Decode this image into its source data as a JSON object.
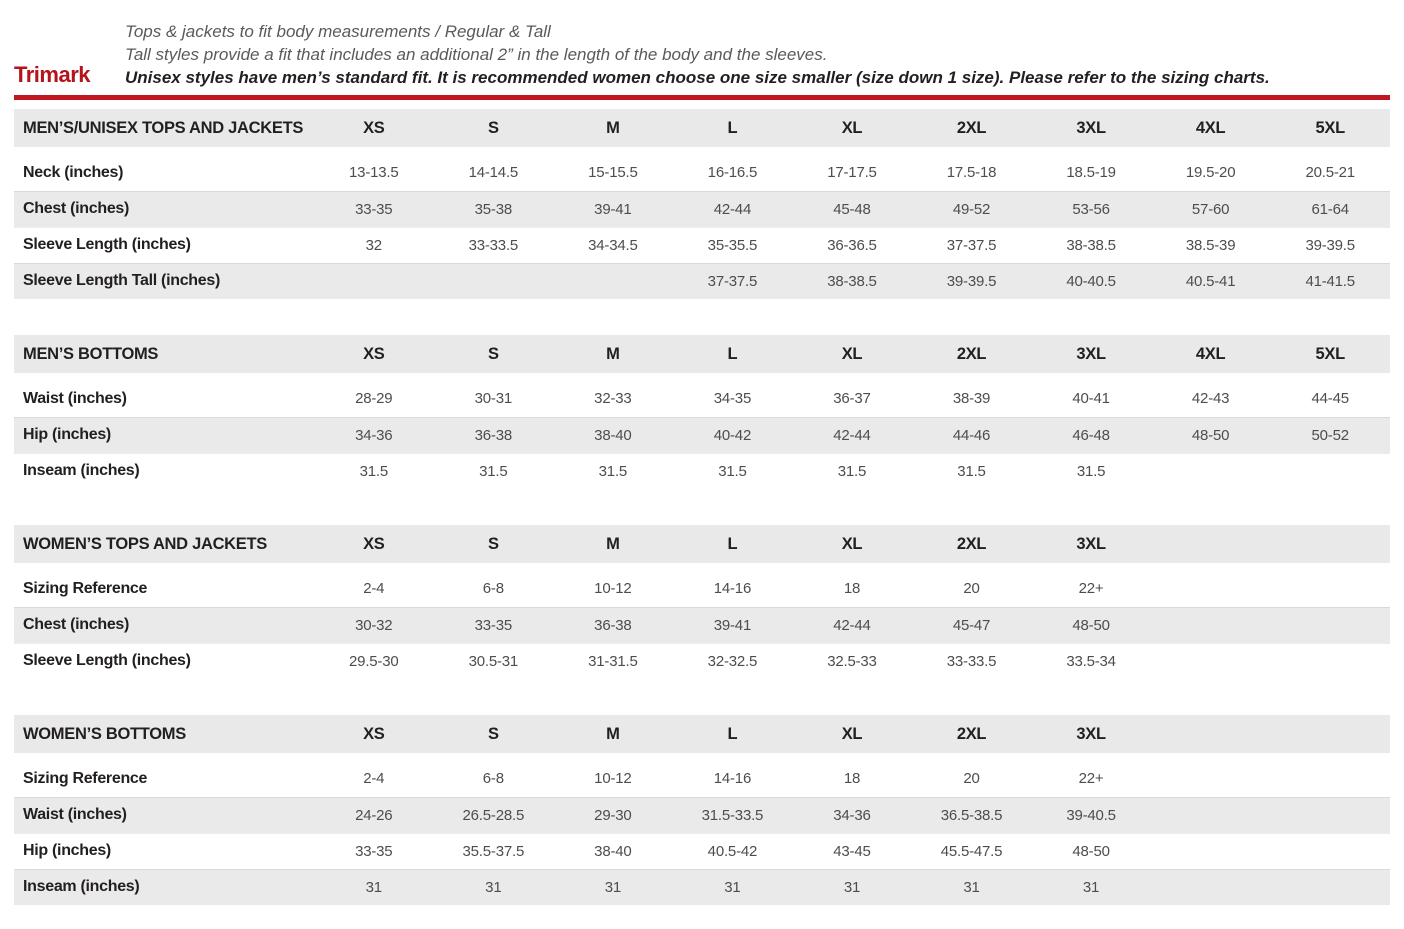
{
  "header": {
    "brand": "Trimark",
    "line1": "Tops & jackets to fit body measurements / Regular & Tall",
    "line2": "Tall styles provide a fit that includes an additional 2” in the length of the body and the sleeves.",
    "line3": "Unisex styles have men’s standard fit. It is recommended women choose one size smaller (size down 1 size).  Please refer to the sizing charts."
  },
  "colors": {
    "brand_red": "#B5121B",
    "rule_red": "#C01622",
    "row_gray": "#EAEAEA",
    "text_dark": "#231F20",
    "text_gray": "#595A5C"
  },
  "tables": [
    {
      "title": "MEN’S/UNISEX TOPS AND JACKETS",
      "sizes": [
        "XS",
        "S",
        "M",
        "L",
        "XL",
        "2XL",
        "3XL",
        "4XL",
        "5XL"
      ],
      "rows": [
        {
          "label": "Neck (inches)",
          "values": [
            "13-13.5",
            "14-14.5",
            "15-15.5",
            "16-16.5",
            "17-17.5",
            "17.5-18",
            "18.5-19",
            "19.5-20",
            "20.5-21"
          ]
        },
        {
          "label": "Chest (inches)",
          "values": [
            "33-35",
            "35-38",
            "39-41",
            "42-44",
            "45-48",
            "49-52",
            "53-56",
            "57-60",
            "61-64"
          ]
        },
        {
          "label": "Sleeve Length (inches)",
          "values": [
            "32",
            "33-33.5",
            "34-34.5",
            "35-35.5",
            "36-36.5",
            "37-37.5",
            "38-38.5",
            "38.5-39",
            "39-39.5"
          ]
        },
        {
          "label": "Sleeve Length Tall (inches)",
          "values": [
            "",
            "",
            "",
            "37-37.5",
            "38-38.5",
            "39-39.5",
            "40-40.5",
            "40.5-41",
            "41-41.5"
          ]
        }
      ]
    },
    {
      "title": "MEN’S BOTTOMS",
      "sizes": [
        "XS",
        "S",
        "M",
        "L",
        "XL",
        "2XL",
        "3XL",
        "4XL",
        "5XL"
      ],
      "rows": [
        {
          "label": "Waist (inches)",
          "values": [
            "28-29",
            "30-31",
            "32-33",
            "34-35",
            "36-37",
            "38-39",
            "40-41",
            "42-43",
            "44-45"
          ]
        },
        {
          "label": "Hip (inches)",
          "values": [
            "34-36",
            "36-38",
            "38-40",
            "40-42",
            "42-44",
            "44-46",
            "46-48",
            "48-50",
            "50-52"
          ]
        },
        {
          "label": "Inseam (inches)",
          "values": [
            "31.5",
            "31.5",
            "31.5",
            "31.5",
            "31.5",
            "31.5",
            "31.5",
            "",
            ""
          ]
        }
      ]
    },
    {
      "title": "WOMEN’S TOPS AND JACKETS",
      "sizes": [
        "XS",
        "S",
        "M",
        "L",
        "XL",
        "2XL",
        "3XL",
        "",
        ""
      ],
      "rows": [
        {
          "label": "Sizing Reference",
          "values": [
            "2-4",
            "6-8",
            "10-12",
            "14-16",
            "18",
            "20",
            "22+",
            "",
            ""
          ]
        },
        {
          "label": "Chest (inches)",
          "values": [
            "30-32",
            "33-35",
            "36-38",
            "39-41",
            "42-44",
            "45-47",
            "48-50",
            "",
            ""
          ]
        },
        {
          "label": "Sleeve Length (inches)",
          "values": [
            "29.5-30",
            "30.5-31",
            "31-31.5",
            "32-32.5",
            "32.5-33",
            "33-33.5",
            "33.5-34",
            "",
            ""
          ]
        }
      ]
    },
    {
      "title": "WOMEN’S BOTTOMS",
      "sizes": [
        "XS",
        "S",
        "M",
        "L",
        "XL",
        "2XL",
        "3XL",
        "",
        ""
      ],
      "rows": [
        {
          "label": "Sizing Reference",
          "values": [
            "2-4",
            "6-8",
            "10-12",
            "14-16",
            "18",
            "20",
            "22+",
            "",
            ""
          ]
        },
        {
          "label": "Waist (inches)",
          "values": [
            "24-26",
            "26.5-28.5",
            "29-30",
            "31.5-33.5",
            "34-36",
            "36.5-38.5",
            "39-40.5",
            "",
            ""
          ]
        },
        {
          "label": "Hip (inches)",
          "values": [
            "33-35",
            "35.5-37.5",
            "38-40",
            "40.5-42",
            "43-45",
            "45.5-47.5",
            "48-50",
            "",
            ""
          ]
        },
        {
          "label": "Inseam (inches)",
          "values": [
            "31",
            "31",
            "31",
            "31",
            "31",
            "31",
            "31",
            "",
            ""
          ]
        }
      ]
    }
  ]
}
